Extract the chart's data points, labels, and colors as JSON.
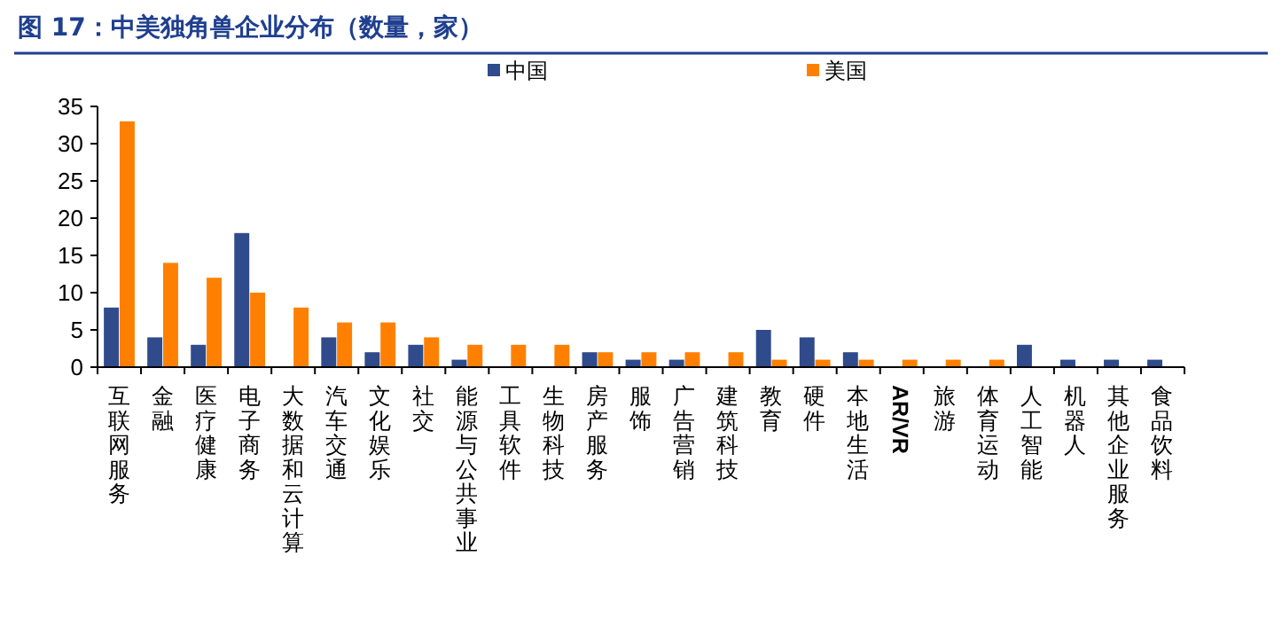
{
  "chart_data": {
    "type": "bar",
    "title": "图 17：中美独角兽企业分布（数量，家）",
    "categories": [
      "互联网服务",
      "金融",
      "医疗健康",
      "电子商务",
      "大数据和云计算",
      "汽车交通",
      "文化娱乐",
      "社交",
      "能源与公共事业",
      "工具软件",
      "生物科技",
      "房产服务",
      "服饰",
      "广告营销",
      "建筑科技",
      "教育",
      "硬件",
      "本地生活",
      "AR/VR",
      "旅游",
      "体育运动",
      "人工智能",
      "机器人",
      "其他企业服务",
      "食品饮料"
    ],
    "series": [
      {
        "name": "中国",
        "color": "#2f4b8c",
        "values": [
          8,
          4,
          3,
          18,
          0,
          4,
          2,
          3,
          1,
          0,
          0,
          2,
          1,
          1,
          0,
          5,
          4,
          2,
          0,
          0,
          0,
          3,
          1,
          1,
          1
        ]
      },
      {
        "name": "美国",
        "color": "#ff8000",
        "values": [
          33,
          14,
          12,
          10,
          8,
          6,
          6,
          4,
          3,
          3,
          3,
          2,
          2,
          2,
          2,
          1,
          1,
          1,
          1,
          1,
          1,
          0,
          0,
          0,
          0
        ]
      }
    ],
    "ylim": [
      0,
      35
    ],
    "yticks": [
      0,
      5,
      10,
      15,
      20,
      25,
      30,
      35
    ],
    "grid": false,
    "legend": "top"
  }
}
